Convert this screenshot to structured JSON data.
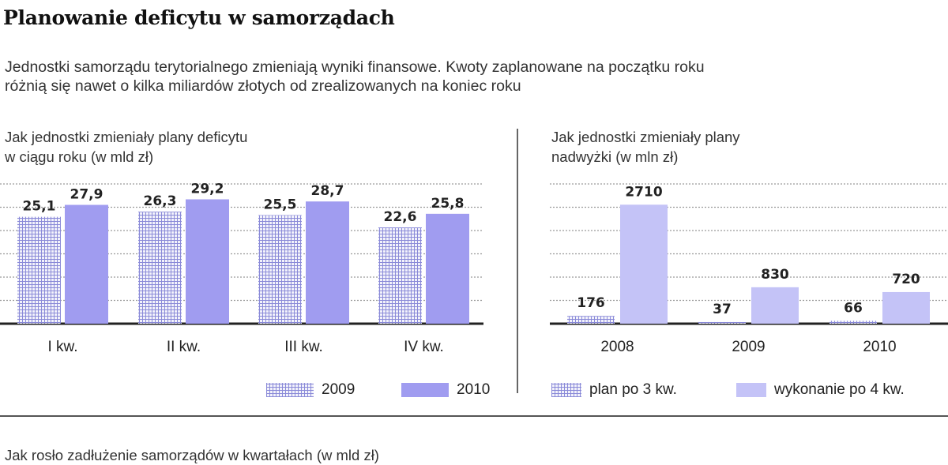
{
  "header": {
    "title": "Planowanie deficytu w samorządach",
    "subtitle_line1": "Jednostki samorządu terytorialnego zmieniają wyniki finansowe. Kwoty zaplanowane na początku roku",
    "subtitle_line2": "różnią się nawet o kilka miliardów złotych od zrealizowanych na koniec roku"
  },
  "left_panel": {
    "title_line1": "Jak jednostki zmieniały plany deficytu",
    "title_line2": "w ciągu roku (w mld zł)",
    "legend": [
      "2009",
      "2010"
    ]
  },
  "right_panel": {
    "title_line1": "Jak jednostki zmieniały plany",
    "title_line2": "nadwyżki (w mln zł)",
    "legend": [
      "plan po 3 kw.",
      "wykonanie po 4 kw."
    ]
  },
  "bottom": {
    "title": "Jak rosło zadłużenie samorządów w kwartałach (w mld zł)"
  },
  "colors": {
    "pattern": "#8a8ad8",
    "left_solid": "#a09cf0",
    "right_solid": "#c4c3f7",
    "grid": "#9a9a9a"
  },
  "chart_data": [
    {
      "type": "bar",
      "title": "Jak jednostki zmieniały plany deficytu w ciągu roku (w mld zł)",
      "categories": [
        "I kw.",
        "II kw.",
        "III kw.",
        "IV kw."
      ],
      "series": [
        {
          "name": "2009",
          "values": [
            25.1,
            26.3,
            25.5,
            22.6
          ],
          "labels": [
            "25,1",
            "26,3",
            "25,5",
            "22,6"
          ]
        },
        {
          "name": "2010",
          "values": [
            27.9,
            29.2,
            28.7,
            25.8
          ],
          "labels": [
            "27,9",
            "29,2",
            "28,7",
            "25,8"
          ]
        }
      ],
      "ylim": [
        0,
        33
      ],
      "grid": true,
      "legend_position": "bottom"
    },
    {
      "type": "bar",
      "title": "Jak jednostki zmieniały plany nadwyżki (w mln zł)",
      "categories": [
        "2008",
        "2009",
        "2010"
      ],
      "series": [
        {
          "name": "plan po 3 kw.",
          "values": [
            176,
            37,
            66
          ],
          "labels": [
            "176",
            "37",
            "66"
          ]
        },
        {
          "name": "wykonanie po 4 kw.",
          "values": [
            2710,
            830,
            720
          ],
          "labels": [
            "2710",
            "830",
            "720"
          ]
        }
      ],
      "ylim": [
        0,
        3200
      ],
      "grid": true,
      "legend_position": "bottom"
    }
  ]
}
